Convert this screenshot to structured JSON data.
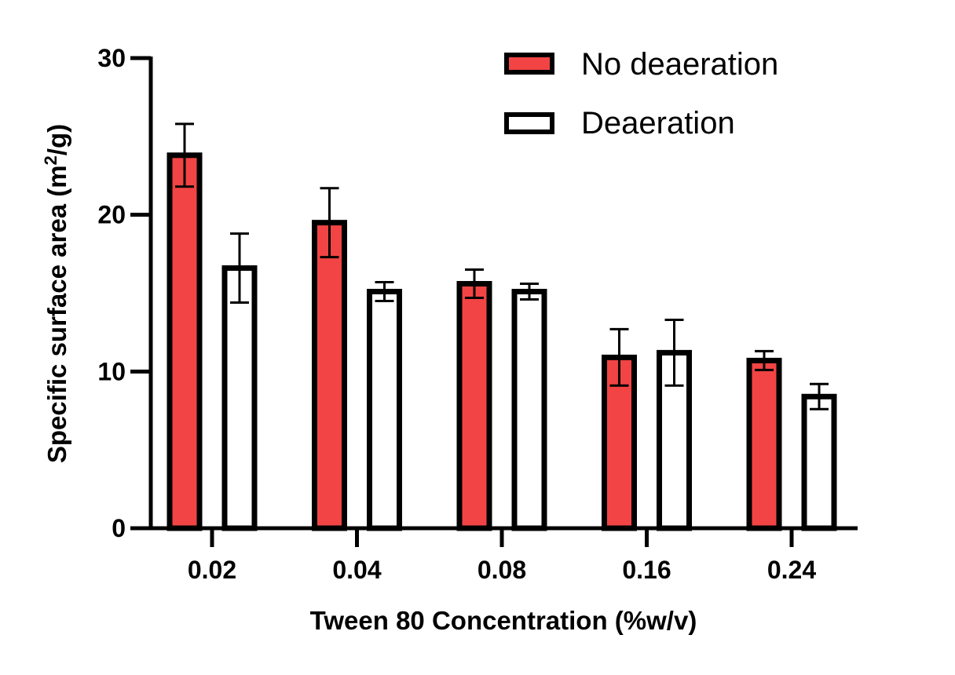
{
  "chart_data": {
    "type": "bar",
    "title": "",
    "xlabel": "Tween 80 Concentration (%w/v)",
    "ylabel": {
      "prefix": "Specific surface area (m",
      "superscript": "2",
      "suffix": "/g)"
    },
    "categories": [
      "0.02",
      "0.04",
      "0.08",
      "0.16",
      "0.24"
    ],
    "ylim": [
      0,
      30
    ],
    "yticks": [
      "0",
      "10",
      "20",
      "30"
    ],
    "legend_position": "top-right",
    "series": [
      {
        "name": "No deaeration",
        "fill": "#f24444",
        "values": [
          23.8,
          19.5,
          15.6,
          10.9,
          10.7
        ],
        "errors": [
          2.0,
          2.2,
          0.9,
          1.8,
          0.6
        ]
      },
      {
        "name": "Deaeration",
        "fill": "#ffffff",
        "values": [
          16.6,
          15.1,
          15.1,
          11.2,
          8.4
        ],
        "errors": [
          2.2,
          0.6,
          0.5,
          2.1,
          0.8
        ]
      }
    ]
  }
}
